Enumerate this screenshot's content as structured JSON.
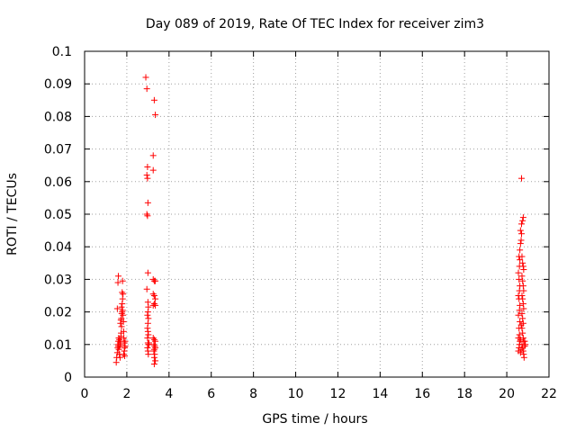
{
  "chart_data": {
    "type": "scatter",
    "title": "Day 089 of 2019, Rate Of TEC Index for receiver zim3",
    "xlabel": "GPS time / hours",
    "ylabel": "ROTI / TECUs",
    "xlim": [
      0,
      22
    ],
    "ylim": [
      0,
      0.1
    ],
    "xticks": [
      "0",
      "2",
      "4",
      "6",
      "8",
      "10",
      "12",
      "14",
      "16",
      "18",
      "20",
      "22"
    ],
    "yticks": [
      "0",
      "0.01",
      "0.02",
      "0.03",
      "0.04",
      "0.05",
      "0.06",
      "0.07",
      "0.08",
      "0.09",
      "0.1"
    ],
    "grid": true,
    "marker": "plus",
    "color": "#ff0000",
    "series": [
      {
        "points": [
          [
            1.5,
            0.0045
          ],
          [
            1.52,
            0.006
          ],
          [
            1.55,
            0.0075
          ],
          [
            1.57,
            0.009
          ],
          [
            1.58,
            0.01
          ],
          [
            1.6,
            0.011
          ],
          [
            1.62,
            0.012
          ],
          [
            1.55,
            0.021
          ],
          [
            1.58,
            0.029
          ],
          [
            1.6,
            0.031
          ],
          [
            1.62,
            0.0085
          ],
          [
            1.65,
            0.007
          ],
          [
            1.66,
            0.0095
          ],
          [
            1.68,
            0.0105
          ],
          [
            1.7,
            0.011
          ],
          [
            1.72,
            0.0125
          ],
          [
            1.73,
            0.0135
          ],
          [
            1.75,
            0.0155
          ],
          [
            1.7,
            0.0165
          ],
          [
            1.72,
            0.0175
          ],
          [
            1.74,
            0.018
          ],
          [
            1.76,
            0.0195
          ],
          [
            1.78,
            0.02
          ],
          [
            1.8,
            0.0205
          ],
          [
            1.75,
            0.0215
          ],
          [
            1.78,
            0.0225
          ],
          [
            1.8,
            0.024
          ],
          [
            1.82,
            0.0255
          ],
          [
            1.78,
            0.026
          ],
          [
            1.8,
            0.0295
          ],
          [
            1.82,
            0.019
          ],
          [
            1.84,
            0.017
          ],
          [
            1.85,
            0.014
          ],
          [
            1.86,
            0.012
          ],
          [
            1.88,
            0.0105
          ],
          [
            1.9,
            0.009
          ],
          [
            1.88,
            0.008
          ],
          [
            1.85,
            0.007
          ],
          [
            1.9,
            0.0065
          ],
          [
            1.92,
            0.0095
          ],
          [
            1.92,
            0.011
          ],
          [
            1.7,
            0.01
          ],
          [
            1.65,
            0.0115
          ],
          [
            1.6,
            0.0095
          ],
          [
            1.68,
            0.006
          ],
          [
            2.9,
            0.092
          ],
          [
            2.95,
            0.0885
          ],
          [
            3.3,
            0.085
          ],
          [
            3.35,
            0.0805
          ],
          [
            3.25,
            0.068
          ],
          [
            2.98,
            0.0645
          ],
          [
            3.25,
            0.0635
          ],
          [
            2.95,
            0.062
          ],
          [
            2.98,
            0.061
          ],
          [
            3.0,
            0.0535
          ],
          [
            2.95,
            0.05
          ],
          [
            2.98,
            0.0495
          ],
          [
            3.0,
            0.032
          ],
          [
            3.25,
            0.03
          ],
          [
            3.3,
            0.0295
          ],
          [
            3.35,
            0.0295
          ],
          [
            2.95,
            0.027
          ],
          [
            3.25,
            0.0255
          ],
          [
            3.3,
            0.025
          ],
          [
            3.35,
            0.024
          ],
          [
            3.3,
            0.0225
          ],
          [
            3.25,
            0.022
          ],
          [
            3.35,
            0.022
          ],
          [
            3.0,
            0.023
          ],
          [
            3.02,
            0.0215
          ],
          [
            3.0,
            0.02
          ],
          [
            2.98,
            0.019
          ],
          [
            3.02,
            0.018
          ],
          [
            3.0,
            0.0165
          ],
          [
            2.98,
            0.015
          ],
          [
            3.0,
            0.014
          ],
          [
            3.02,
            0.013
          ],
          [
            2.98,
            0.012
          ],
          [
            3.0,
            0.0105
          ],
          [
            3.02,
            0.01
          ],
          [
            2.98,
            0.009
          ],
          [
            3.0,
            0.008
          ],
          [
            3.02,
            0.007
          ],
          [
            3.05,
            0.0105
          ],
          [
            3.05,
            0.01
          ],
          [
            3.25,
            0.012
          ],
          [
            3.3,
            0.0115
          ],
          [
            3.35,
            0.011
          ],
          [
            3.28,
            0.01
          ],
          [
            3.32,
            0.0095
          ],
          [
            3.35,
            0.009
          ],
          [
            3.3,
            0.0085
          ],
          [
            3.28,
            0.008
          ],
          [
            3.32,
            0.007
          ],
          [
            3.3,
            0.006
          ],
          [
            3.35,
            0.005
          ],
          [
            3.3,
            0.004
          ],
          [
            20.55,
            0.008
          ],
          [
            20.58,
            0.009
          ],
          [
            20.6,
            0.01
          ],
          [
            20.62,
            0.011
          ],
          [
            20.55,
            0.012
          ],
          [
            20.6,
            0.013
          ],
          [
            20.58,
            0.015
          ],
          [
            20.62,
            0.017
          ],
          [
            20.55,
            0.019
          ],
          [
            20.6,
            0.0205
          ],
          [
            20.62,
            0.022
          ],
          [
            20.58,
            0.024
          ],
          [
            20.55,
            0.025
          ],
          [
            20.6,
            0.0265
          ],
          [
            20.62,
            0.028
          ],
          [
            20.58,
            0.03
          ],
          [
            20.55,
            0.032
          ],
          [
            20.6,
            0.034
          ],
          [
            20.62,
            0.036
          ],
          [
            20.58,
            0.037
          ],
          [
            20.62,
            0.039
          ],
          [
            20.65,
            0.041
          ],
          [
            20.68,
            0.042
          ],
          [
            20.7,
            0.044
          ],
          [
            20.65,
            0.045
          ],
          [
            20.7,
            0.047
          ],
          [
            20.75,
            0.048
          ],
          [
            20.78,
            0.049
          ],
          [
            20.7,
            0.061
          ],
          [
            20.72,
            0.037
          ],
          [
            20.75,
            0.035
          ],
          [
            20.78,
            0.034
          ],
          [
            20.8,
            0.033
          ],
          [
            20.72,
            0.031
          ],
          [
            20.75,
            0.0295
          ],
          [
            20.78,
            0.028
          ],
          [
            20.8,
            0.0265
          ],
          [
            20.72,
            0.025
          ],
          [
            20.75,
            0.024
          ],
          [
            20.78,
            0.0225
          ],
          [
            20.8,
            0.021
          ],
          [
            20.72,
            0.0195
          ],
          [
            20.75,
            0.018
          ],
          [
            20.78,
            0.0165
          ],
          [
            20.72,
            0.015
          ],
          [
            20.75,
            0.0135
          ],
          [
            20.78,
            0.012
          ],
          [
            20.8,
            0.011
          ],
          [
            20.72,
            0.01
          ],
          [
            20.75,
            0.009
          ],
          [
            20.78,
            0.008
          ],
          [
            20.8,
            0.007
          ],
          [
            20.82,
            0.006
          ],
          [
            20.85,
            0.0095
          ],
          [
            20.85,
            0.011
          ],
          [
            20.88,
            0.01
          ],
          [
            20.68,
            0.0085
          ],
          [
            20.65,
            0.0075
          ],
          [
            20.65,
            0.0115
          ],
          [
            20.68,
            0.016
          ]
        ]
      }
    ]
  }
}
